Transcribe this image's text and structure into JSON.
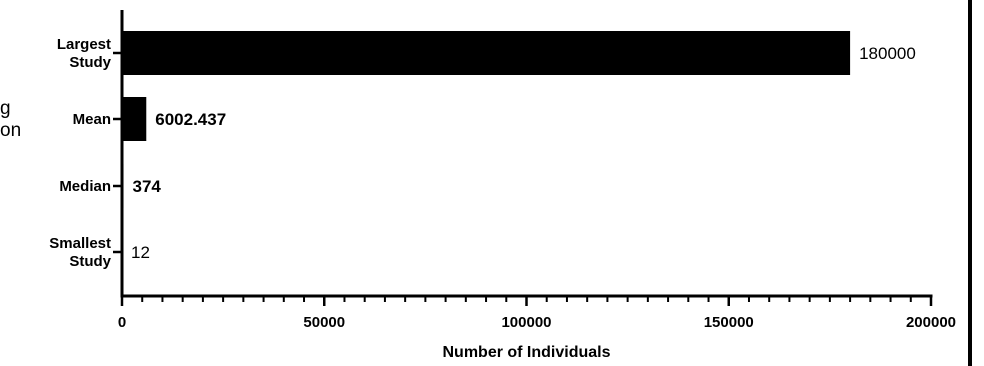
{
  "clipped_left_text": {
    "line1": "g",
    "line2": "on"
  },
  "chart_data": {
    "type": "bar",
    "orientation": "horizontal",
    "categories": [
      [
        "Largest",
        "Study"
      ],
      [
        "Mean"
      ],
      [
        "Median"
      ],
      [
        "Smallest",
        "Study"
      ]
    ],
    "values": [
      180000,
      6002.437,
      374,
      12
    ],
    "value_labels": [
      "180000",
      "6002.437",
      "374",
      "12"
    ],
    "value_label_bold": [
      false,
      true,
      true,
      false
    ],
    "xlabel": "Number of Individuals",
    "xlim": [
      0,
      200000
    ],
    "x_ticks": [
      0,
      50000,
      100000,
      150000,
      200000
    ],
    "x_tick_labels": [
      "0",
      "50000",
      "100000",
      "150000",
      "200000"
    ],
    "x_minor_step": 5000,
    "bar_color": "#000000",
    "grid": false,
    "legend": "none"
  }
}
